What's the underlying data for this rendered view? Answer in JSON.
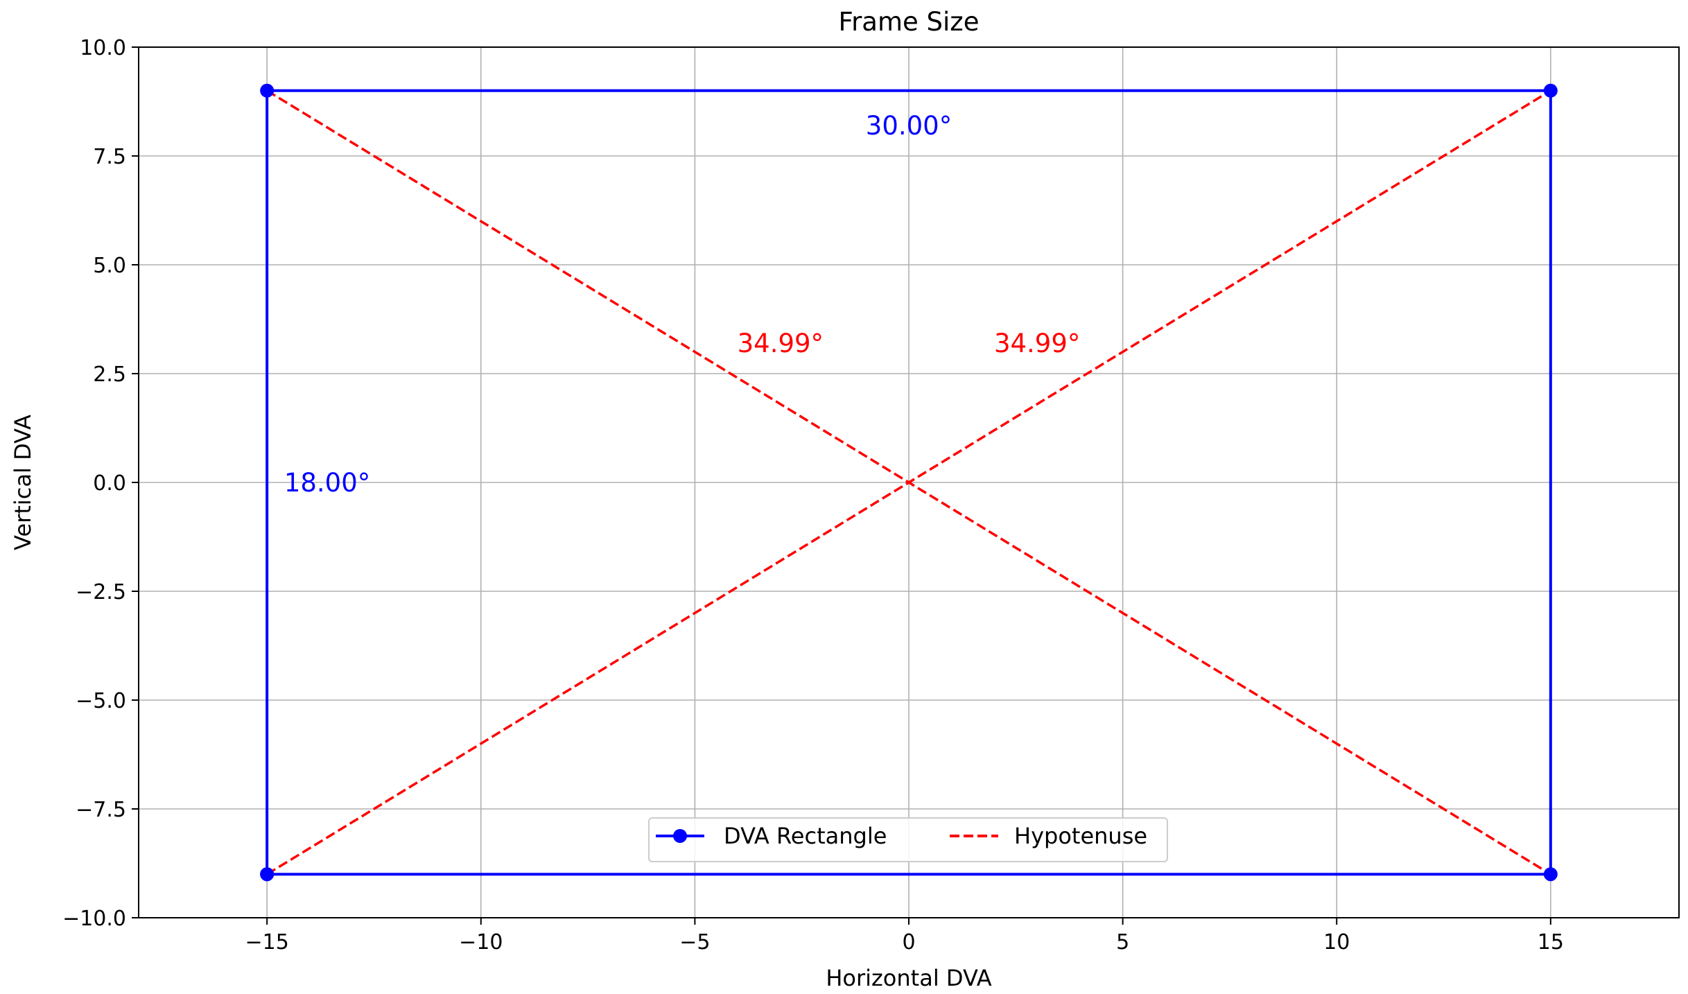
{
  "chart_data": {
    "type": "line",
    "title": "Frame Size",
    "xlabel": "Horizontal DVA",
    "ylabel": "Vertical DVA",
    "xlim": [
      -18,
      18
    ],
    "ylim": [
      -10,
      10
    ],
    "xticks": [
      -15,
      -10,
      -5,
      0,
      5,
      10,
      15
    ],
    "xtick_labels": [
      "−15",
      "−10",
      "−5",
      "0",
      "5",
      "10",
      "15"
    ],
    "yticks": [
      -10,
      -7.5,
      -5,
      -2.5,
      0,
      2.5,
      5,
      7.5,
      10
    ],
    "ytick_labels": [
      "−10.0",
      "−7.5",
      "−5.0",
      "−2.5",
      "0.0",
      "2.5",
      "5.0",
      "7.5",
      "10.0"
    ],
    "grid": true,
    "legend_position": "bottom-center",
    "series": [
      {
        "name": "DVA Rectangle",
        "style": "solid-markers",
        "color": "#0000ff",
        "x": [
          -15,
          15,
          15,
          -15,
          -15
        ],
        "y": [
          -9,
          -9,
          9,
          9,
          -9
        ]
      },
      {
        "name": "Hypotenuse",
        "style": "dashed",
        "color": "#ff0000",
        "segments": [
          {
            "x": [
              -15,
              15
            ],
            "y": [
              -9,
              9
            ]
          },
          {
            "x": [
              -15,
              15
            ],
            "y": [
              9,
              -9
            ]
          }
        ]
      }
    ],
    "annotations": [
      {
        "text": "30.00°",
        "x": 0,
        "y": 8.2,
        "anchor": "middle",
        "color": "#0000ff"
      },
      {
        "text": "18.00°",
        "x": -14.6,
        "y": 0,
        "anchor": "start",
        "color": "#0000ff"
      },
      {
        "text": "34.99°",
        "x": -3,
        "y": 3.2,
        "anchor": "middle",
        "color": "#ff0000"
      },
      {
        "text": "34.99°",
        "x": 3,
        "y": 3.2,
        "anchor": "middle",
        "color": "#ff0000"
      }
    ]
  }
}
